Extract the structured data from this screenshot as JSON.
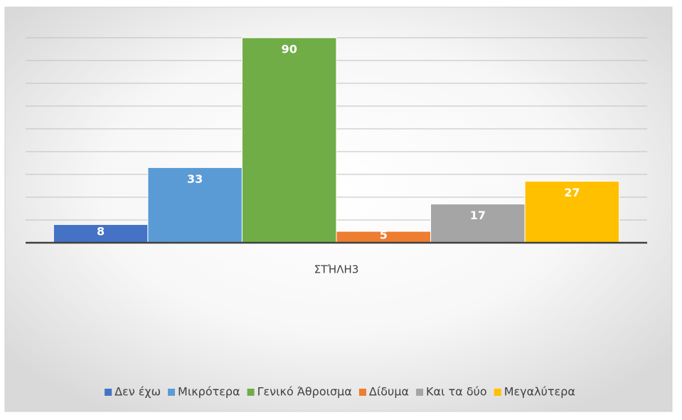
{
  "chart_data": {
    "type": "bar",
    "categories": [
      "ΣΤΉΛΗ3"
    ],
    "series": [
      {
        "name": "Δεν έχω",
        "color": "#4472c4",
        "values": [
          8
        ]
      },
      {
        "name": "Μικρότερα",
        "color": "#5b9bd5",
        "values": [
          33
        ]
      },
      {
        "name": "Γενικό Άθροισμα",
        "color": "#70ad47",
        "values": [
          90
        ]
      },
      {
        "name": "Δίδυμα",
        "color": "#ed7d31",
        "values": [
          5
        ]
      },
      {
        "name": "Και τα δύο",
        "color": "#a5a5a5",
        "values": [
          17
        ]
      },
      {
        "name": "Μεγαλύτερα",
        "color": "#ffc000",
        "values": [
          27
        ]
      }
    ],
    "ylim": [
      0,
      90
    ],
    "yticks": [
      0,
      10,
      20,
      30,
      40,
      50,
      60,
      70,
      80,
      90
    ],
    "grid": true,
    "legend": "bottom"
  }
}
